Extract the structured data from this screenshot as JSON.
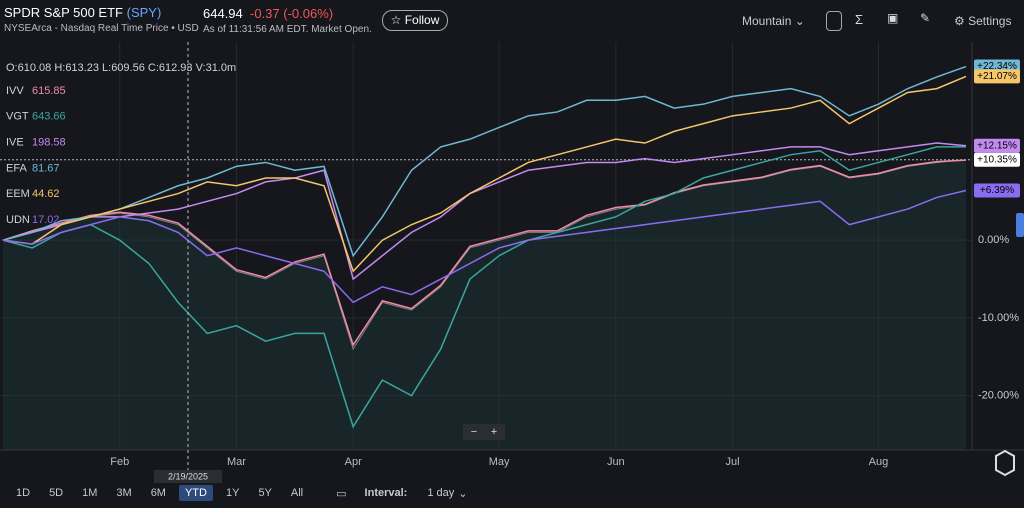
{
  "header": {
    "name": "SPDR S&P 500 ETF",
    "symbol": "(SPY)",
    "exchange": "NYSEArca - Nasdaq Real Time Price • USD",
    "price": "644.94",
    "change": "-0.37 (-0.06%)",
    "as_of": "As of 11:31:56 AM EDT. Market Open.",
    "follow": "Follow",
    "chart_style": "Mountain",
    "settings": "Settings"
  },
  "ohlc": "O:610.08 H:613.23 L:609.56 C:612.93 V:31.0m",
  "crosshair_date": "2/19/2025",
  "toolbar": {
    "ranges": [
      "1D",
      "5D",
      "1M",
      "3M",
      "6M",
      "YTD",
      "1Y",
      "5Y",
      "All"
    ],
    "active": "YTD",
    "interval_label": "Interval:",
    "interval": "1 day"
  },
  "chart_data": {
    "type": "line",
    "categories": [
      null,
      null,
      null,
      null,
      "Feb",
      null,
      null,
      null,
      "Mar",
      null,
      null,
      null,
      "Apr",
      null,
      null,
      null,
      null,
      "May",
      null,
      null,
      null,
      "Jun",
      null,
      null,
      null,
      "Jul",
      null,
      null,
      null,
      null,
      "Aug",
      null,
      null,
      null
    ],
    "ylim": [
      -27,
      25.5
    ],
    "yticks": [
      {
        "value": 0,
        "label": "0.00%"
      },
      {
        "value": -10,
        "label": "-10.00%"
      },
      {
        "value": -20,
        "label": "-20.00%"
      }
    ],
    "grid": true,
    "series": [
      {
        "name": "SPY",
        "color": "#e6e6e6",
        "values": [
          0,
          1,
          2,
          3,
          3.5,
          3,
          2,
          -1,
          -4,
          -5,
          -3,
          -2,
          -14,
          -8,
          -9,
          -6,
          -1,
          0,
          1,
          1,
          3,
          4,
          4.5,
          6,
          7,
          7.5,
          8,
          9,
          9.5,
          8,
          8.5,
          9.5,
          10,
          10.35
        ],
        "value_labels": [
          null,
          null,
          null,
          null,
          null,
          null,
          null,
          null,
          null,
          null,
          null,
          null,
          null,
          null,
          null,
          null,
          null,
          null,
          null,
          null,
          null,
          null,
          null,
          null,
          null,
          null,
          null,
          null,
          null,
          null,
          null,
          null,
          null,
          "+10.35%"
        ]
      },
      {
        "name": "IVV",
        "color": "#f28ba8",
        "price": 615.85,
        "values": [
          0,
          1.2,
          2.2,
          3.2,
          3.6,
          3.2,
          2.2,
          -0.8,
          -3.8,
          -4.8,
          -2.8,
          -1.8,
          -13.5,
          -7.8,
          -8.8,
          -5.8,
          -0.8,
          0.2,
          1.2,
          1.2,
          3.2,
          4.2,
          4.6,
          6.1,
          7.1,
          7.6,
          8.1,
          9.1,
          9.6,
          8.1,
          8.6,
          9.6,
          10.1,
          10.3
        ]
      },
      {
        "name": "VGT",
        "color": "#3aa6a0",
        "price": 643.66,
        "values": [
          0,
          -1,
          1,
          2,
          0,
          -3,
          -8,
          -12,
          -11,
          -13,
          -12,
          -12,
          -24,
          -18,
          -20,
          -14,
          -5,
          -2,
          0,
          1,
          2,
          3,
          5,
          6,
          8,
          9,
          10,
          11,
          11.5,
          9,
          10,
          11,
          12,
          12
        ]
      },
      {
        "name": "IVE",
        "color": "#c58af0",
        "price": 198.58,
        "values": [
          0,
          1,
          2,
          3,
          3,
          3.5,
          4,
          5,
          6,
          7.5,
          8,
          9,
          -5,
          -2,
          1,
          3,
          6,
          7.5,
          9,
          9.5,
          10,
          10,
          10.5,
          10,
          10.5,
          11,
          11.5,
          12,
          12,
          11,
          11.5,
          12,
          12.5,
          12.15
        ],
        "value_labels": [
          null,
          null,
          null,
          null,
          null,
          null,
          null,
          null,
          null,
          null,
          null,
          null,
          null,
          null,
          null,
          null,
          null,
          null,
          null,
          null,
          null,
          null,
          null,
          null,
          null,
          null,
          null,
          null,
          null,
          null,
          null,
          null,
          null,
          "+12.15%"
        ]
      },
      {
        "name": "EFA",
        "color": "#6fb8d6",
        "price": 81.67,
        "values": [
          0,
          1,
          2.5,
          3,
          4,
          5.5,
          7,
          8,
          9.5,
          10,
          9,
          9.5,
          -2,
          3,
          9,
          12,
          13,
          14.5,
          16,
          16.5,
          18,
          18,
          18.5,
          17,
          17.5,
          18.5,
          19,
          19.5,
          18.5,
          16,
          17.5,
          19.5,
          21,
          22.34
        ],
        "value_labels": [
          null,
          null,
          null,
          null,
          null,
          null,
          null,
          null,
          null,
          null,
          null,
          null,
          null,
          null,
          null,
          null,
          null,
          null,
          null,
          null,
          null,
          null,
          null,
          null,
          null,
          null,
          null,
          null,
          null,
          null,
          null,
          null,
          null,
          "+22.34%"
        ]
      },
      {
        "name": "EEM",
        "color": "#f5c66a",
        "price": 44.62,
        "values": [
          0,
          -0.5,
          2,
          3,
          4,
          5,
          6,
          7.5,
          7,
          8,
          8,
          7,
          -4,
          0,
          2,
          3.5,
          6,
          8,
          10,
          11,
          12,
          13,
          12.5,
          14,
          15,
          16,
          16.5,
          17,
          18,
          15,
          17,
          19,
          19.5,
          21.07
        ],
        "value_labels": [
          null,
          null,
          null,
          null,
          null,
          null,
          null,
          null,
          null,
          null,
          null,
          null,
          null,
          null,
          null,
          null,
          null,
          null,
          null,
          null,
          null,
          null,
          null,
          null,
          null,
          null,
          null,
          null,
          null,
          null,
          null,
          null,
          null,
          "+21.07%"
        ]
      },
      {
        "name": "UDN",
        "color": "#8a6cf0",
        "price": 17.02,
        "values": [
          0,
          -0.5,
          1,
          2,
          3,
          2.5,
          1,
          -2,
          -1,
          -2,
          -3,
          -4,
          -8,
          -6,
          -7,
          -5,
          -3,
          -1,
          0,
          0.5,
          1,
          1.5,
          2,
          2.5,
          3,
          3.5,
          4,
          4.5,
          5,
          2,
          3,
          4,
          5.5,
          6.39
        ],
        "value_labels": [
          null,
          null,
          null,
          null,
          null,
          null,
          null,
          null,
          null,
          null,
          null,
          null,
          null,
          null,
          null,
          null,
          null,
          null,
          null,
          null,
          null,
          null,
          null,
          null,
          null,
          null,
          null,
          null,
          null,
          null,
          null,
          null,
          null,
          "+6.39%"
        ]
      }
    ]
  }
}
